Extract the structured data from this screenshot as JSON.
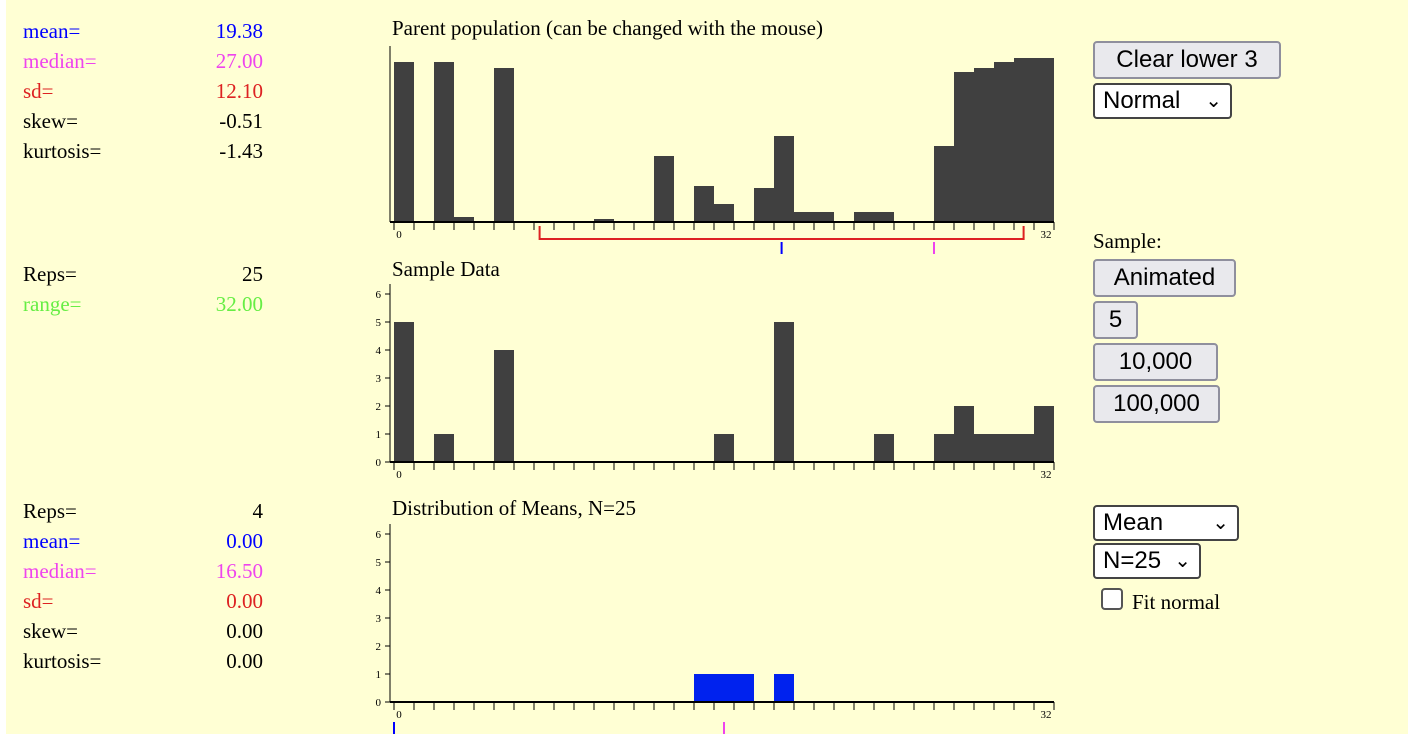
{
  "colors": {
    "mean": "#0000ff",
    "median": "#ee44ee",
    "sd": "#dd2222",
    "range": "#66ee44",
    "bar": "#404040",
    "means_bar": "#0022ee",
    "background": "#ffffd4"
  },
  "parent_stats": {
    "mean_label": "mean=",
    "mean_value": "19.38",
    "median_label": "median=",
    "median_value": "27.00",
    "sd_label": "sd=",
    "sd_value": "12.10",
    "skew_label": "skew=",
    "skew_value": "-0.51",
    "kurtosis_label": "kurtosis=",
    "kurtosis_value": "-1.43"
  },
  "sample_stats": {
    "reps_label": "Reps=",
    "reps_value": "25",
    "range_label": "range=",
    "range_value": "32.00"
  },
  "means_stats": {
    "reps_label": "Reps=",
    "reps_value": "4",
    "mean_label": "mean=",
    "mean_value": "0.00",
    "median_label": "median=",
    "median_value": "16.50",
    "sd_label": "sd=",
    "sd_value": "0.00",
    "skew_label": "skew=",
    "skew_value": "0.00",
    "kurtosis_label": "kurtosis=",
    "kurtosis_value": "0.00"
  },
  "panels": {
    "parent_title": "Parent population (can be changed with the mouse)",
    "sample_title": "Sample Data",
    "means_title": "Distribution of Means, N=25"
  },
  "controls": {
    "clear_button": "Clear lower 3",
    "distribution_select": "Normal",
    "sample_label": "Sample:",
    "animated_button": "Animated",
    "five_button": "5",
    "ten_thousand_button": "10,000",
    "hundred_thousand_button": "100,000",
    "statistic_select": "Mean",
    "n_select": "N=25",
    "fit_normal_label": "Fit normal",
    "fit_normal_checked": false
  },
  "chart_data": [
    {
      "type": "bar",
      "title": "Parent population (can be changed with the mouse)",
      "x_tick_labels": [
        "0",
        "32"
      ],
      "x_range": [
        0,
        32
      ],
      "values": [
        16,
        0,
        16,
        0.5,
        0,
        15.4,
        0,
        0,
        0,
        0,
        0.3,
        0,
        0,
        6.6,
        0,
        3.6,
        1.8,
        0,
        3.4,
        8.6,
        1,
        1,
        0,
        1,
        1,
        0,
        0,
        7.6,
        15,
        15.4,
        16,
        16.4,
        16.4
      ],
      "mean": 19.38,
      "median": 27,
      "sd_interval": [
        7.28,
        31.48
      ]
    },
    {
      "type": "bar",
      "title": "Sample Data",
      "x_tick_labels": [
        "0",
        "32"
      ],
      "x_range": [
        0,
        32
      ],
      "y_tick_labels": [
        "0",
        "1",
        "2",
        "3",
        "4",
        "5",
        "6"
      ],
      "ylim": [
        0,
        6
      ],
      "values": [
        5,
        0,
        1,
        0,
        0,
        4,
        0,
        0,
        0,
        0,
        0,
        0,
        0,
        0,
        0,
        0,
        1,
        0,
        0,
        5,
        0,
        0,
        0,
        0,
        1,
        0,
        0,
        1,
        2,
        1,
        1,
        1,
        2
      ]
    },
    {
      "type": "bar",
      "title": "Distribution of Means, N=25",
      "x_tick_labels": [
        "0",
        "32"
      ],
      "x_range": [
        0,
        32
      ],
      "y_tick_labels": [
        "0",
        "1",
        "2",
        "3",
        "4",
        "5",
        "6"
      ],
      "ylim": [
        0,
        6
      ],
      "values": [
        0,
        0,
        0,
        0,
        0,
        0,
        0,
        0,
        0,
        0,
        0,
        0,
        0,
        0,
        0,
        1,
        1,
        1,
        0,
        1,
        0,
        0,
        0,
        0,
        0,
        0,
        0,
        0,
        0,
        0,
        0,
        0,
        0
      ],
      "mean": 0,
      "median": 16.5
    }
  ]
}
